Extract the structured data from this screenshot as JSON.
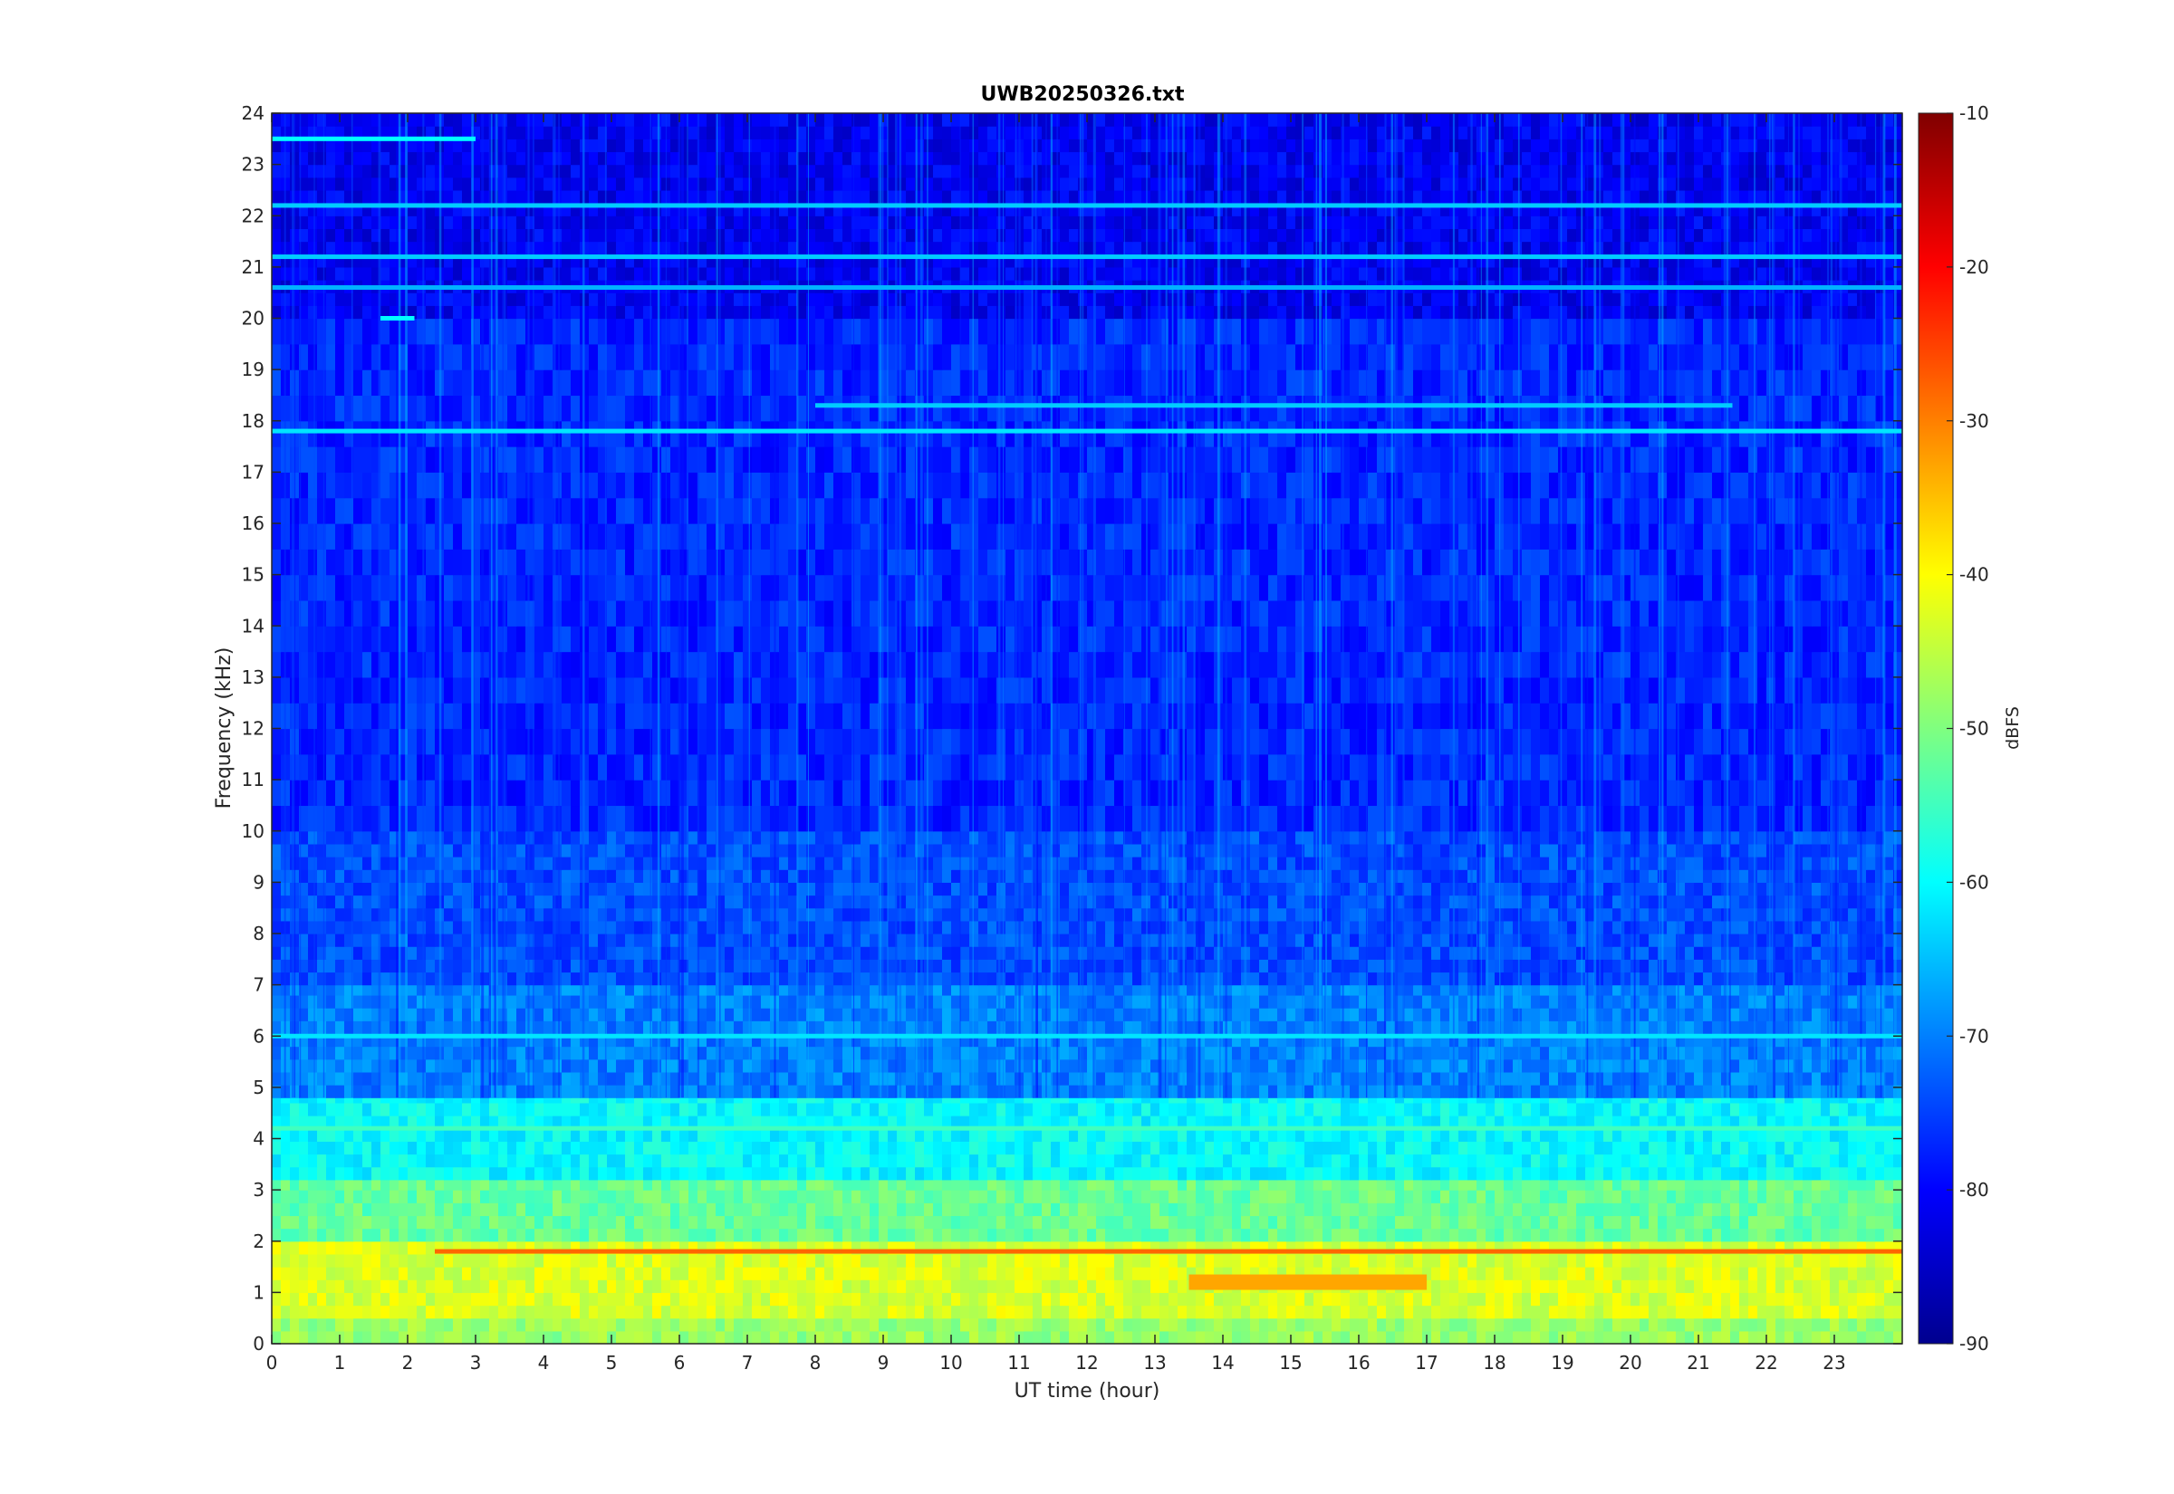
{
  "chart_data": {
    "type": "heatmap",
    "title": "UWB20250326.txt",
    "xlabel": "UT time (hour)",
    "ylabel": "Frequency (kHz)",
    "xlim": [
      0,
      24
    ],
    "ylim": [
      0,
      24
    ],
    "x_ticks": [
      "0",
      "1",
      "2",
      "3",
      "4",
      "5",
      "6",
      "7",
      "8",
      "9",
      "10",
      "11",
      "12",
      "13",
      "14",
      "15",
      "16",
      "17",
      "18",
      "19",
      "20",
      "21",
      "22",
      "23"
    ],
    "y_ticks": [
      "0",
      "1",
      "2",
      "3",
      "4",
      "5",
      "6",
      "7",
      "8",
      "9",
      "10",
      "11",
      "12",
      "13",
      "14",
      "15",
      "16",
      "17",
      "18",
      "19",
      "20",
      "21",
      "22",
      "23",
      "24"
    ],
    "colorbar": {
      "label": "dBFS",
      "range": [
        -90,
        -10
      ],
      "ticks": [
        "-90",
        "-80",
        "-70",
        "-60",
        "-50",
        "-40",
        "-30",
        "-20",
        "-10"
      ],
      "colormap": "jet"
    },
    "background_level_dbfs": [
      {
        "freq_khz": [
          0,
          0.5
        ],
        "level": -48
      },
      {
        "freq_khz": [
          0.5,
          2.0
        ],
        "level": -43
      },
      {
        "freq_khz": [
          2.0,
          3.2
        ],
        "level": -52
      },
      {
        "freq_khz": [
          3.2,
          4.8
        ],
        "level": -60
      },
      {
        "freq_khz": [
          4.8,
          7.0
        ],
        "level": -70
      },
      {
        "freq_khz": [
          7.0,
          10.0
        ],
        "level": -74
      },
      {
        "freq_khz": [
          10.0,
          20.0
        ],
        "level": -77
      },
      {
        "freq_khz": [
          20.0,
          24.0
        ],
        "level": -81
      }
    ],
    "features": [
      {
        "freq_khz": 1.8,
        "time_hour": [
          2.4,
          24
        ],
        "level": -28,
        "kind": "line"
      },
      {
        "freq_khz": 1.2,
        "time_hour": [
          13.5,
          17
        ],
        "level": -33,
        "kind": "band"
      },
      {
        "freq_khz": 4.2,
        "time_hour": [
          0,
          24
        ],
        "level": -55,
        "kind": "line"
      },
      {
        "freq_khz": 6.0,
        "time_hour": [
          0,
          24
        ],
        "level": -62,
        "kind": "line"
      },
      {
        "freq_khz": 17.8,
        "time_hour": [
          0,
          24
        ],
        "level": -62,
        "kind": "line"
      },
      {
        "freq_khz": 18.3,
        "time_hour": [
          8,
          21.5
        ],
        "level": -64,
        "kind": "line"
      },
      {
        "freq_khz": 20.0,
        "time_hour": [
          1.6,
          2.1
        ],
        "level": -60,
        "kind": "line"
      },
      {
        "freq_khz": 20.6,
        "time_hour": [
          0,
          24
        ],
        "level": -66,
        "kind": "line"
      },
      {
        "freq_khz": 21.2,
        "time_hour": [
          0,
          24
        ],
        "level": -64,
        "kind": "line"
      },
      {
        "freq_khz": 22.2,
        "time_hour": [
          0,
          24
        ],
        "level": -64,
        "kind": "line"
      },
      {
        "freq_khz": 23.5,
        "time_hour": [
          0,
          3.0
        ],
        "level": -60,
        "kind": "line"
      }
    ],
    "grid": false
  }
}
